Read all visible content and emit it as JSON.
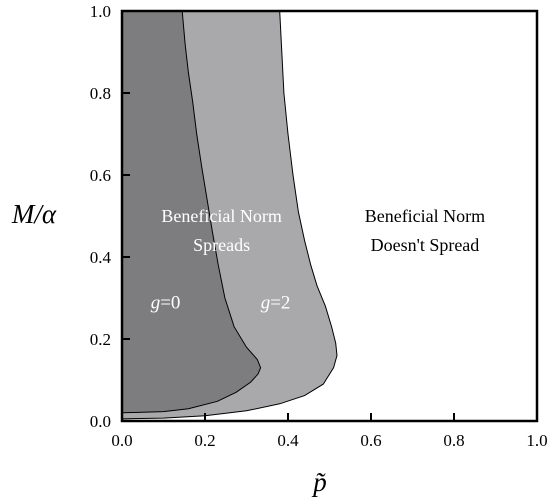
{
  "chart_data": {
    "type": "area",
    "xlabel": "p̃",
    "ylabel": "M/α",
    "xlim": [
      0,
      1
    ],
    "ylim": [
      0,
      1
    ],
    "x_ticks": [
      "0.0",
      "0.2",
      "0.4",
      "0.6",
      "0.8",
      "1.0"
    ],
    "y_ticks": [
      "0.0",
      "0.2",
      "0.4",
      "0.6",
      "0.8",
      "1.0"
    ],
    "grid": false,
    "series": [
      {
        "name": "g=0",
        "color": "#7d7d80",
        "boundary": [
          [
            0.0,
            0.02
          ],
          [
            0.04,
            0.021
          ],
          [
            0.1,
            0.023
          ],
          [
            0.16,
            0.03
          ],
          [
            0.23,
            0.048
          ],
          [
            0.275,
            0.07
          ],
          [
            0.31,
            0.095
          ],
          [
            0.328,
            0.115
          ],
          [
            0.334,
            0.13
          ],
          [
            0.326,
            0.15
          ],
          [
            0.3,
            0.18
          ],
          [
            0.27,
            0.23
          ],
          [
            0.248,
            0.3
          ],
          [
            0.232,
            0.38
          ],
          [
            0.218,
            0.46
          ],
          [
            0.205,
            0.54
          ],
          [
            0.192,
            0.62
          ],
          [
            0.18,
            0.7
          ],
          [
            0.17,
            0.78
          ],
          [
            0.16,
            0.85
          ],
          [
            0.152,
            0.92
          ],
          [
            0.145,
            1.0
          ]
        ]
      },
      {
        "name": "g=2",
        "color": "#a9a9ac",
        "boundary": [
          [
            0.0,
            0.005
          ],
          [
            0.1,
            0.007
          ],
          [
            0.2,
            0.013
          ],
          [
            0.3,
            0.025
          ],
          [
            0.38,
            0.042
          ],
          [
            0.44,
            0.062
          ],
          [
            0.485,
            0.09
          ],
          [
            0.51,
            0.13
          ],
          [
            0.518,
            0.16
          ],
          [
            0.515,
            0.19
          ],
          [
            0.505,
            0.23
          ],
          [
            0.49,
            0.28
          ],
          [
            0.47,
            0.33
          ],
          [
            0.455,
            0.38
          ],
          [
            0.44,
            0.44
          ],
          [
            0.425,
            0.51
          ],
          [
            0.412,
            0.6
          ],
          [
            0.4,
            0.7
          ],
          [
            0.39,
            0.8
          ],
          [
            0.385,
            0.9
          ],
          [
            0.38,
            1.0
          ]
        ]
      }
    ],
    "annotations": [
      {
        "text": "Beneficial Norm",
        "x": 0.24,
        "y": 0.485,
        "color": "#ffffff"
      },
      {
        "text": "Spreads",
        "x": 0.24,
        "y": 0.415,
        "color": "#ffffff"
      },
      {
        "text": "Beneficial Norm",
        "x": 0.73,
        "y": 0.485,
        "color": "#000000"
      },
      {
        "text": "Doesn't Spread",
        "x": 0.73,
        "y": 0.415,
        "color": "#000000"
      },
      {
        "g_text": "g",
        "rest_text": "=0",
        "x": 0.105,
        "y": 0.275,
        "color": "#ffffff"
      },
      {
        "g_text": "g",
        "rest_text": "=2",
        "x": 0.37,
        "y": 0.275,
        "color": "#ffffff"
      }
    ]
  }
}
